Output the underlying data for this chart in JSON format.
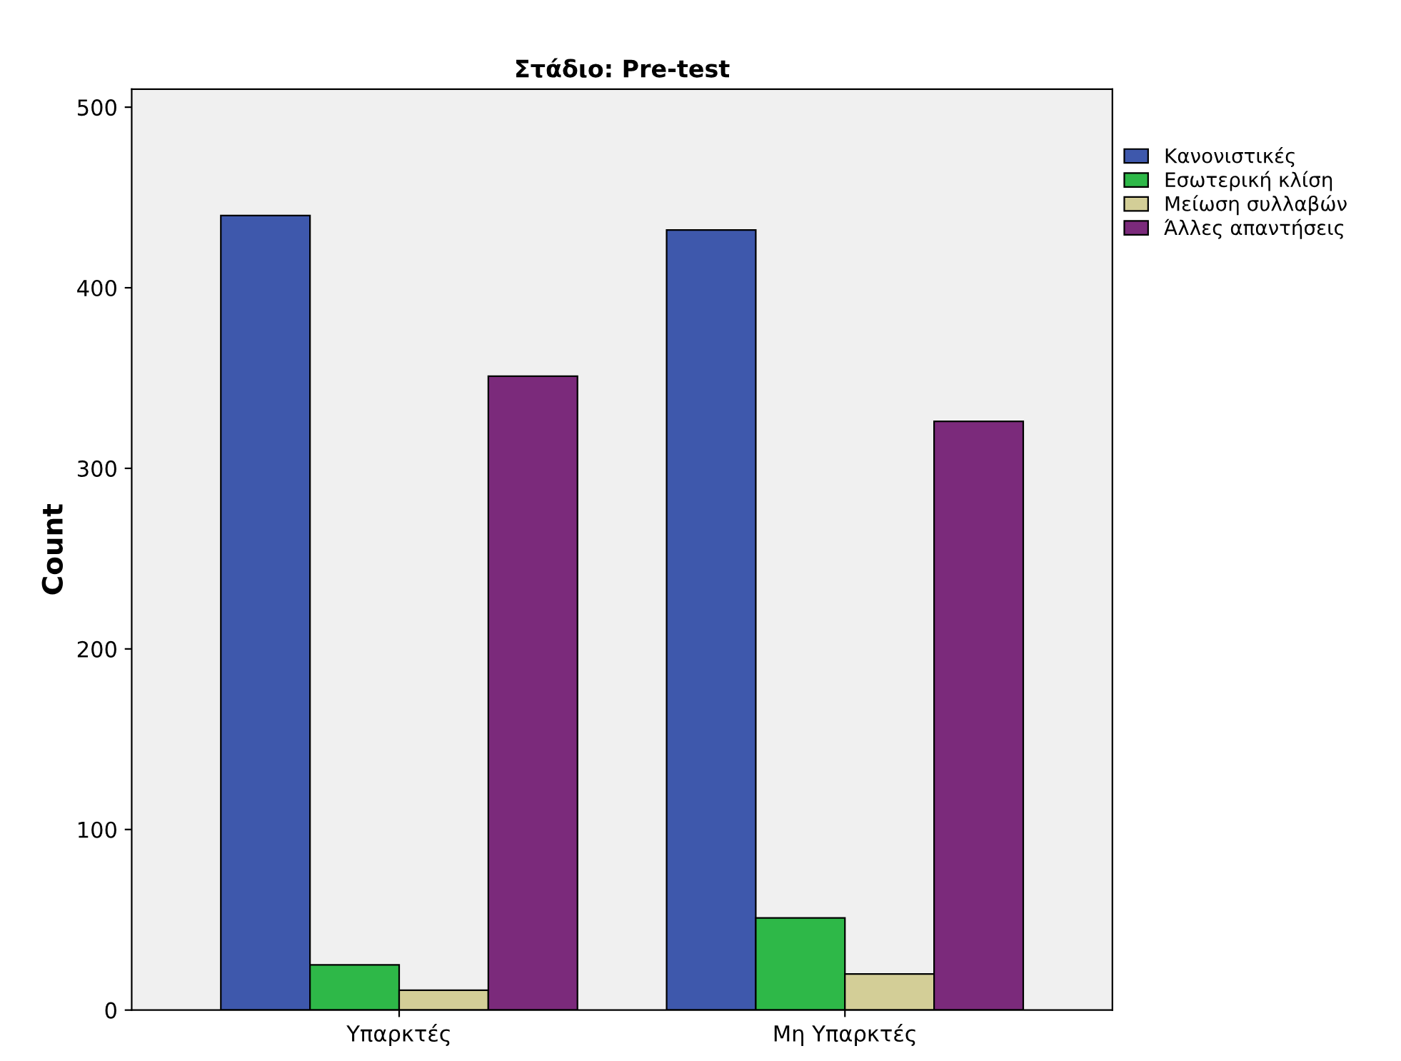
{
  "chart_data": {
    "type": "bar",
    "title": "Στάδιο: Pre-test",
    "ylabel": "Count",
    "categories": [
      "Υπαρκτές",
      "Μη Υπαρκτές"
    ],
    "series": [
      {
        "name": "Κανονιστικές",
        "color": "#3e58ac",
        "values": [
          440,
          432
        ]
      },
      {
        "name": "Εσωτερική κλίση",
        "color": "#2eb848",
        "values": [
          25,
          51
        ]
      },
      {
        "name": "Μείωση συλλαβών",
        "color": "#d3ce97",
        "values": [
          11,
          20
        ]
      },
      {
        "name": "Άλλες απαντήσεις",
        "color": "#7b2a7b",
        "values": [
          351,
          326
        ]
      }
    ],
    "ylim": [
      0,
      510
    ],
    "yticks": [
      0,
      100,
      200,
      300,
      400,
      500
    ],
    "grid": false,
    "legend": "top right"
  }
}
